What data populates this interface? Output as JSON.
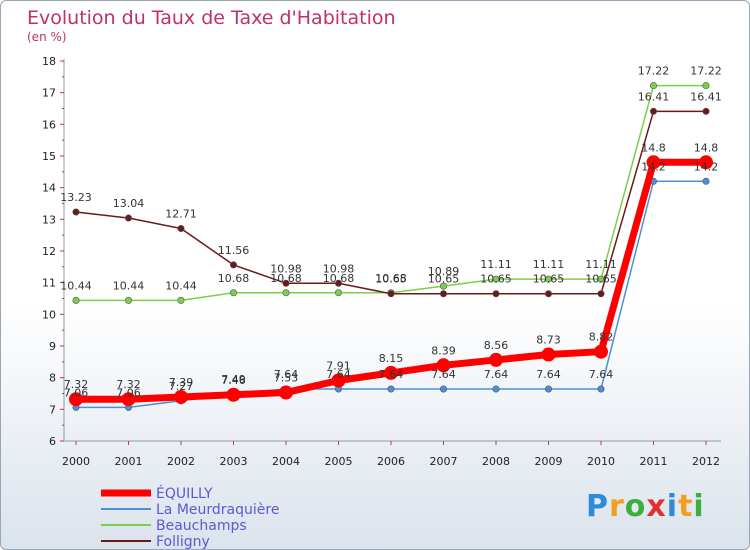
{
  "chart_data": {
    "type": "line",
    "title": "Evolution du Taux de Taxe d'Habitation",
    "unit_label": "(en %)",
    "x": [
      "2000",
      "2001",
      "2002",
      "2003",
      "2004",
      "2005",
      "2006",
      "2007",
      "2008",
      "2009",
      "2010",
      "2011",
      "2012"
    ],
    "ylim": [
      6,
      18
    ],
    "yticks": [
      6,
      7,
      8,
      9,
      10,
      11,
      12,
      13,
      14,
      15,
      16,
      17,
      18
    ],
    "grid": false,
    "legend_placement": "bottom-left",
    "series": [
      {
        "name": "ÉQUILLY",
        "color": "#ff0000",
        "values": [
          7.32,
          7.32,
          7.39,
          7.46,
          7.53,
          7.91,
          8.15,
          8.39,
          8.56,
          8.73,
          8.82,
          14.8,
          14.8
        ]
      },
      {
        "name": "La Meurdraquière",
        "color": "#4a90d9",
        "values": [
          7.06,
          7.06,
          7.27,
          7.49,
          7.64,
          7.64,
          7.64,
          7.64,
          7.64,
          7.64,
          7.64,
          14.2,
          14.2
        ]
      },
      {
        "name": "Beauchamps",
        "color": "#7ad04a",
        "values": [
          10.44,
          10.44,
          10.44,
          10.68,
          10.68,
          10.68,
          10.68,
          10.89,
          11.11,
          11.11,
          11.11,
          17.22,
          17.22
        ]
      },
      {
        "name": "Folligny",
        "color": "#6b1a1a",
        "values": [
          13.23,
          13.04,
          12.71,
          11.56,
          10.98,
          10.98,
          10.65,
          10.65,
          10.65,
          10.65,
          10.65,
          16.41,
          16.41
        ]
      }
    ]
  },
  "logo": {
    "letters": [
      "P",
      "r",
      "o",
      "x",
      "i",
      "t",
      "i"
    ],
    "colors": [
      "#2e8bd6",
      "#f0a020",
      "#3cae3c",
      "#e03030",
      "#2e8bd6",
      "#f0a020",
      "#3cae3c"
    ]
  }
}
